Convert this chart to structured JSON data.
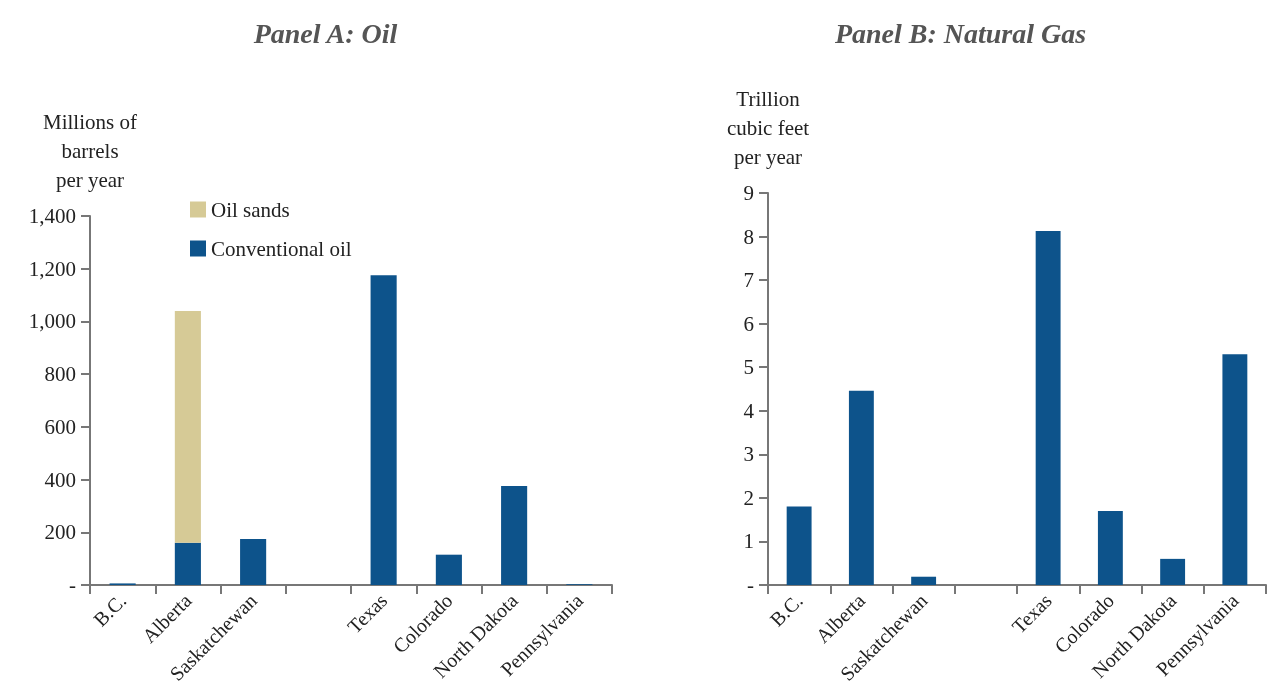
{
  "chart_data": [
    {
      "type": "bar",
      "title": "Panel A: Oil",
      "ylabel": "Millions of\nbarrels\nper year",
      "stacked": true,
      "categories": [
        "B.C.",
        "Alberta",
        "Saskatchewan",
        null,
        "Texas",
        "Colorado",
        "North Dakota",
        "Pennsylvania"
      ],
      "series": [
        {
          "name": "Conventional oil",
          "color": "#0d538b",
          "values": [
            6,
            160,
            175,
            null,
            1175,
            115,
            376,
            3
          ]
        },
        {
          "name": "Oil sands",
          "color": "#d6ca96",
          "values": [
            null,
            880,
            null,
            null,
            null,
            null,
            null,
            null
          ]
        }
      ],
      "ylim": [
        0,
        1400
      ],
      "yticks": [
        {
          "value": 0,
          "label": "-"
        },
        200,
        400,
        600,
        800,
        {
          "value": 1000,
          "label": "1,000"
        },
        {
          "value": 1200,
          "label": "1,200"
        },
        {
          "value": 1400,
          "label": "1,400"
        }
      ],
      "grid": false,
      "legend": "top left"
    },
    {
      "type": "bar",
      "title": "Panel B: Natural Gas",
      "ylabel": "Trillion\ncubic feet\nper year",
      "categories": [
        "B.C.",
        "Alberta",
        "Saskatchewan",
        null,
        "Texas",
        "Colorado",
        "North Dakota",
        "Pennsylvania"
      ],
      "series": [
        {
          "color": "#0d538b",
          "values": [
            1.8,
            4.46,
            0.19,
            null,
            8.13,
            1.7,
            0.6,
            5.3
          ]
        }
      ],
      "ylim": [
        0,
        9
      ],
      "yticks": [
        {
          "value": 0,
          "label": "-"
        },
        1,
        2,
        3,
        4,
        5,
        6,
        7,
        8,
        9
      ],
      "grid": false,
      "legend": false
    }
  ]
}
